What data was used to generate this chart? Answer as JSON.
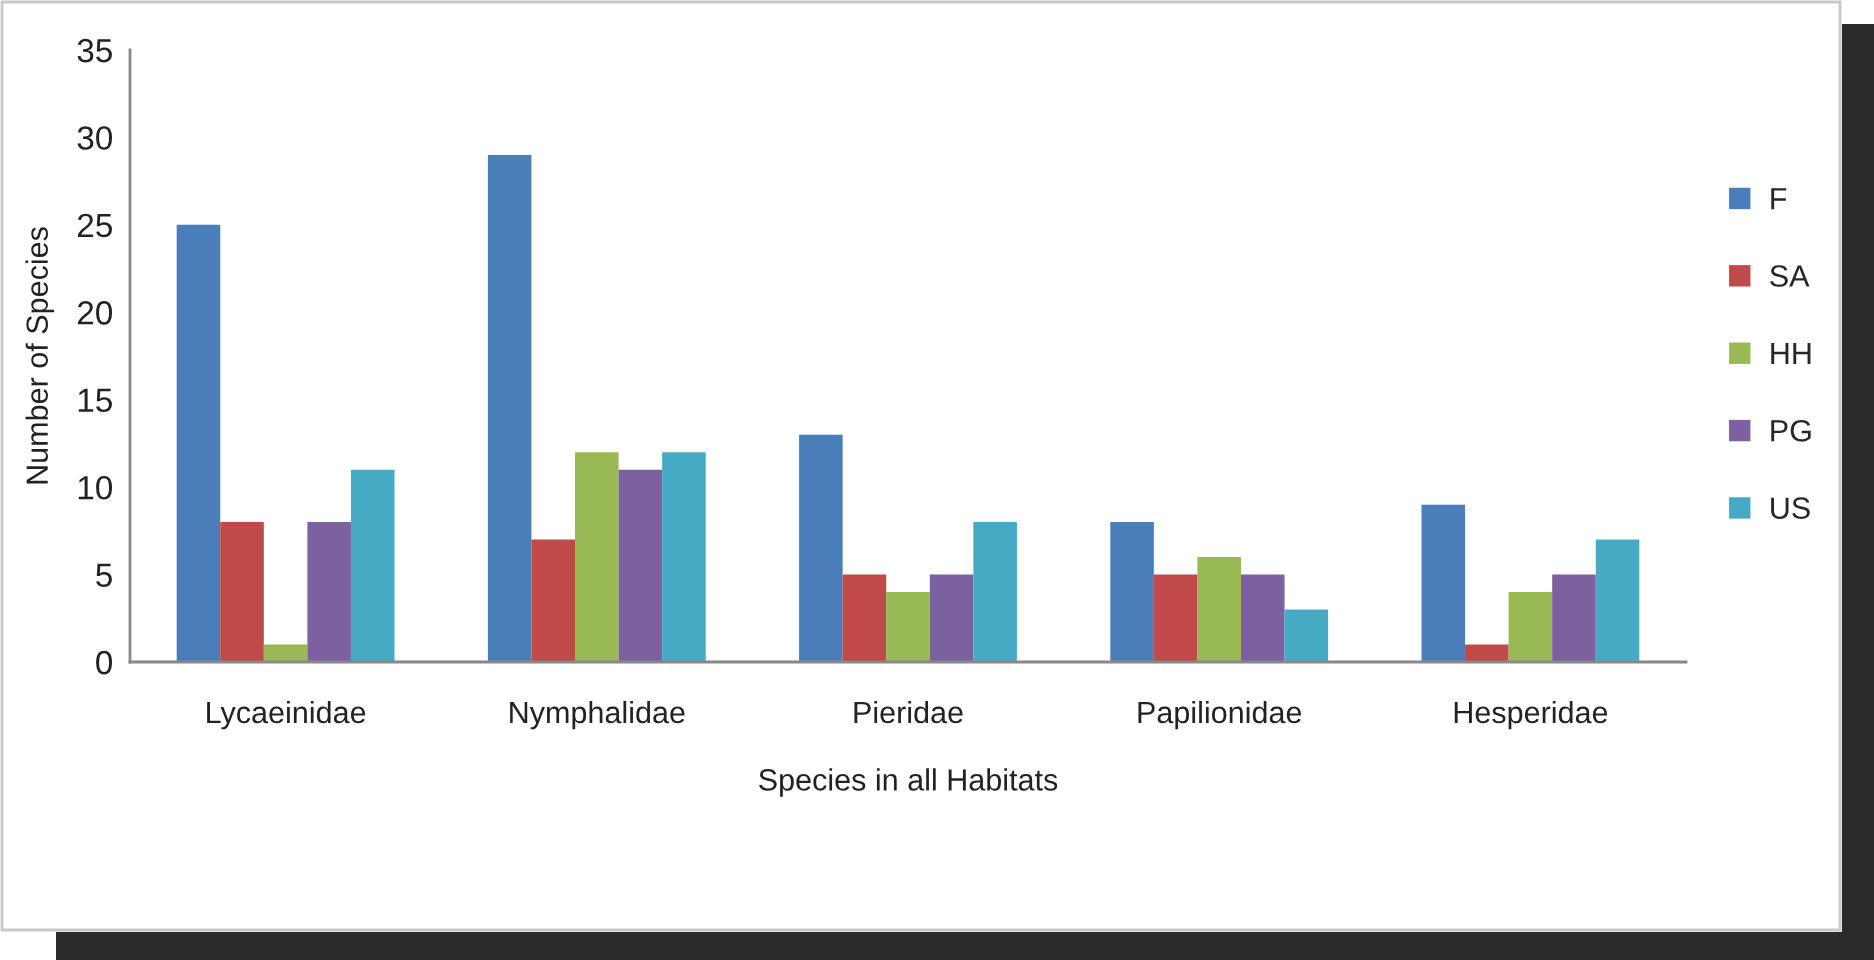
{
  "chart_data": {
    "type": "bar",
    "xlabel": "Species in all Habitats",
    "ylabel": "Number of Species",
    "categories": [
      "Lycaeinidae",
      "Nymphalidae",
      "Pieridae",
      "Papilionidae",
      "Hesperidae"
    ],
    "series": [
      {
        "name": "F",
        "color": "#4a7ebb",
        "values": [
          25,
          29,
          13,
          8,
          9
        ]
      },
      {
        "name": "SA",
        "color": "#be4b48",
        "values": [
          8,
          7,
          5,
          5,
          1
        ]
      },
      {
        "name": "HH",
        "color": "#98b954",
        "values": [
          1,
          12,
          4,
          6,
          4
        ]
      },
      {
        "name": "PG",
        "color": "#7d60a0",
        "values": [
          8,
          11,
          5,
          5,
          5
        ]
      },
      {
        "name": "US",
        "color": "#46aac5",
        "values": [
          11,
          12,
          8,
          3,
          7
        ]
      }
    ],
    "ylim": [
      0,
      35
    ],
    "yticks": [
      0,
      5,
      10,
      15,
      20,
      25,
      30,
      35
    ],
    "grid": false,
    "legend": "right"
  }
}
